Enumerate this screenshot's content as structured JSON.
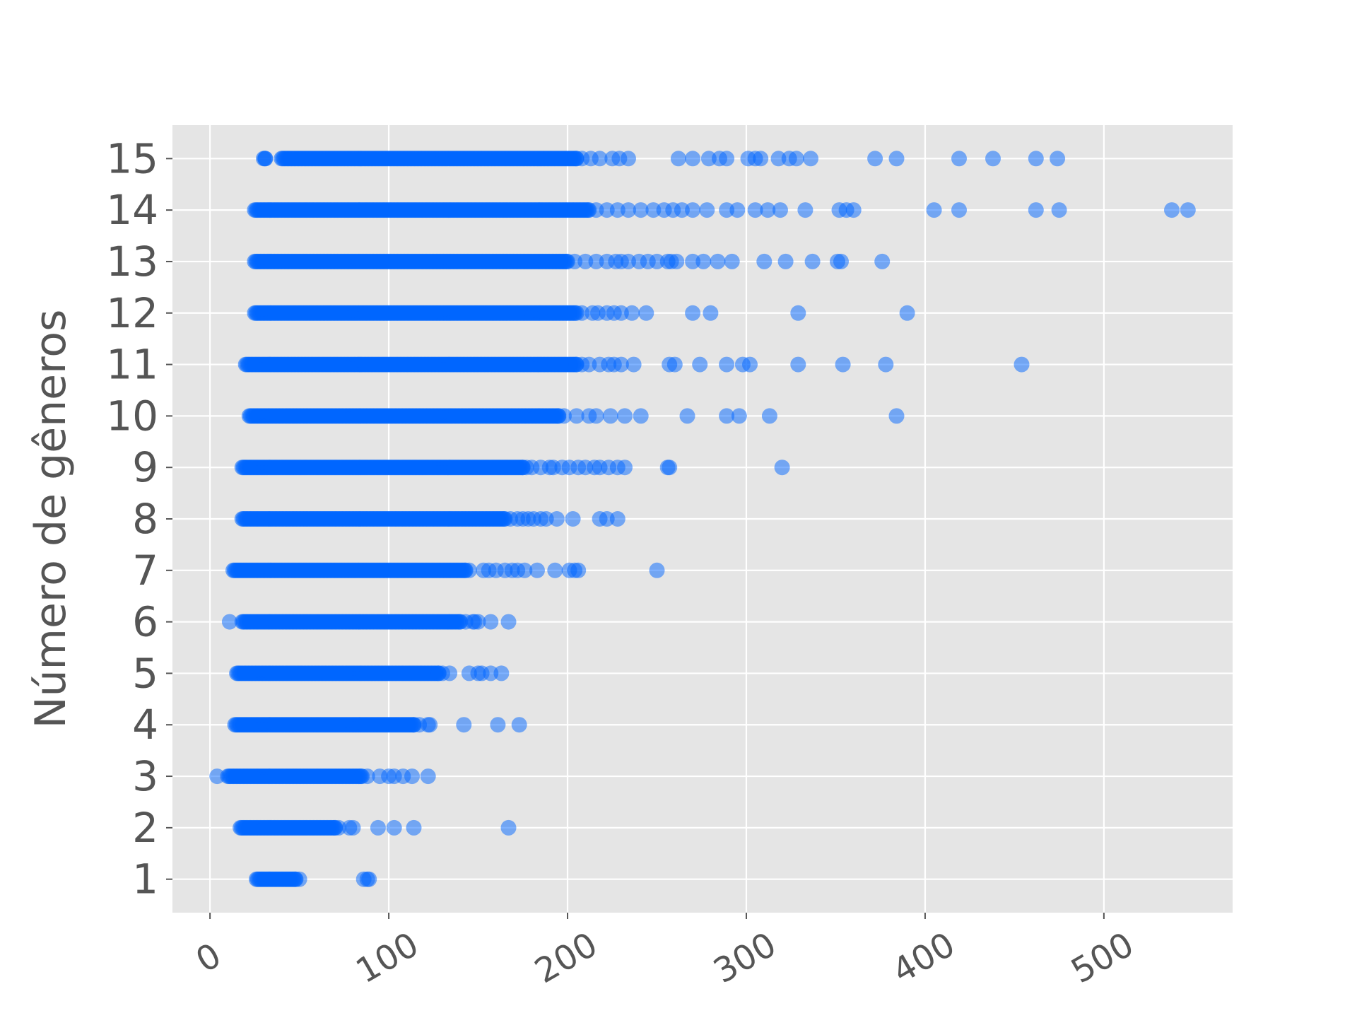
{
  "chart_data": {
    "type": "scatter",
    "title": "",
    "xlabel": "",
    "ylabel": "Número de gêneros",
    "xlim": [
      -21,
      572
    ],
    "ylim": [
      0.35,
      15.65
    ],
    "x_ticks": [
      "0",
      "100",
      "200",
      "300",
      "400",
      "500"
    ],
    "y_ticks": [
      "1",
      "2",
      "3",
      "4",
      "5",
      "6",
      "7",
      "8",
      "9",
      "10",
      "11",
      "12",
      "13",
      "14",
      "15"
    ],
    "grid": true,
    "background": "#e5e5e5",
    "point_color": "#0066ff",
    "rows": [
      {
        "y": 1,
        "dense": [
          [
            26,
            48
          ]
        ],
        "outliers": [
          50,
          86,
          88,
          89
        ]
      },
      {
        "y": 2,
        "dense": [
          [
            17,
            70
          ]
        ],
        "outliers": [
          72,
          78,
          80,
          94,
          103,
          114,
          167
        ]
      },
      {
        "y": 3,
        "dense": [
          [
            10,
            85
          ]
        ],
        "outliers": [
          4,
          88,
          95,
          100,
          103,
          108,
          113,
          122
        ]
      },
      {
        "y": 4,
        "dense": [
          [
            14,
            114
          ]
        ],
        "outliers": [
          117,
          122,
          123,
          142,
          161,
          173
        ]
      },
      {
        "y": 5,
        "dense": [
          [
            15,
            128
          ]
        ],
        "outliers": [
          130,
          134,
          145,
          150,
          152,
          157,
          163
        ]
      },
      {
        "y": 6,
        "dense": [
          [
            18,
            140
          ]
        ],
        "outliers": [
          11,
          143,
          147,
          148,
          150,
          157,
          167
        ]
      },
      {
        "y": 7,
        "dense": [
          [
            13,
            143
          ]
        ],
        "outliers": [
          145,
          153,
          156,
          160,
          165,
          169,
          172,
          176,
          183,
          193,
          201,
          204,
          206,
          250
        ]
      },
      {
        "y": 8,
        "dense": [
          [
            18,
            165
          ]
        ],
        "outliers": [
          168,
          172,
          175,
          178,
          181,
          185,
          188,
          194,
          203,
          218,
          222,
          228
        ]
      },
      {
        "y": 9,
        "dense": [
          [
            18,
            175
          ]
        ],
        "outliers": [
          177,
          180,
          185,
          190,
          192,
          197,
          201,
          206,
          210,
          215,
          218,
          223,
          228,
          232,
          256,
          257,
          320
        ]
      },
      {
        "y": 10,
        "dense": [
          [
            22,
            195
          ]
        ],
        "outliers": [
          198,
          205,
          212,
          216,
          224,
          232,
          241,
          267,
          289,
          296,
          313,
          384
        ]
      },
      {
        "y": 11,
        "dense": [
          [
            20,
            205
          ]
        ],
        "outliers": [
          208,
          212,
          218,
          223,
          226,
          230,
          237,
          257,
          260,
          274,
          289,
          298,
          302,
          329,
          354,
          378,
          454
        ]
      },
      {
        "y": 12,
        "dense": [
          [
            25,
            205
          ]
        ],
        "outliers": [
          208,
          214,
          217,
          222,
          226,
          230,
          236,
          244,
          270,
          280,
          329,
          390
        ]
      },
      {
        "y": 13,
        "dense": [
          [
            25,
            200
          ]
        ],
        "outliers": [
          204,
          210,
          216,
          222,
          227,
          230,
          234,
          240,
          245,
          250,
          256,
          258,
          261,
          270,
          276,
          284,
          292,
          310,
          322,
          337,
          351,
          353,
          376
        ]
      },
      {
        "y": 14,
        "dense": [
          [
            25,
            212
          ]
        ],
        "outliers": [
          216,
          222,
          228,
          234,
          241,
          248,
          254,
          259,
          264,
          270,
          278,
          289,
          295,
          305,
          312,
          319,
          333,
          352,
          356,
          360,
          405,
          419,
          462,
          475,
          538,
          547
        ]
      },
      {
        "y": 15,
        "dense": [
          [
            30,
            31
          ],
          [
            40,
            205
          ]
        ],
        "outliers": [
          208,
          213,
          218,
          225,
          229,
          234,
          262,
          270,
          279,
          285,
          289,
          301,
          305,
          308,
          318,
          324,
          328,
          336,
          372,
          384,
          419,
          438,
          462,
          474
        ]
      }
    ]
  }
}
